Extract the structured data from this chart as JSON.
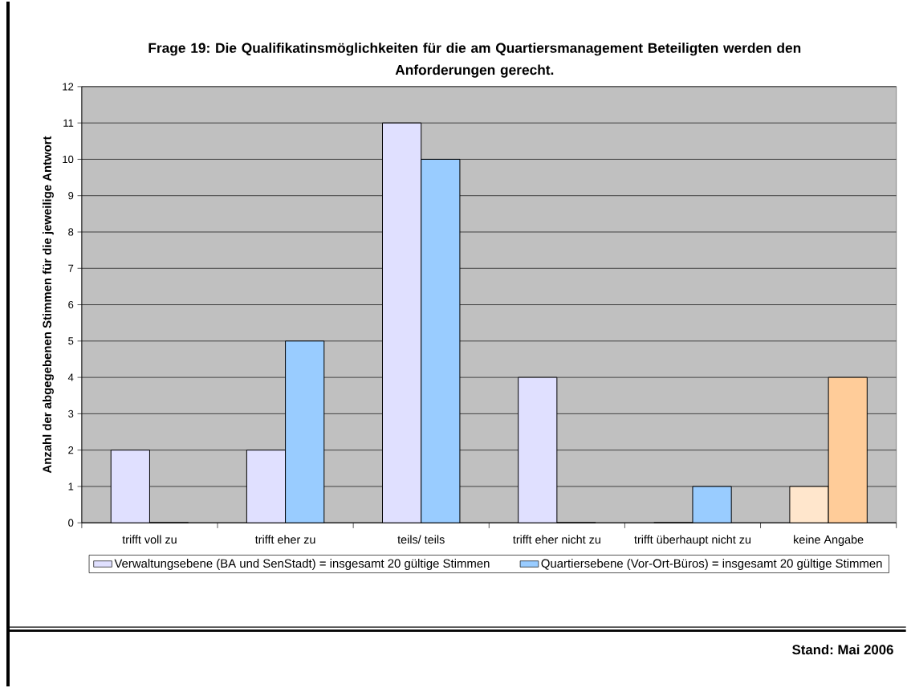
{
  "chart_data": {
    "type": "bar",
    "title": "Frage 19: Die Qualifikatinsmöglichkeiten für die am Quartiersmanagement Beteiligten werden den Anforderungen gerecht.",
    "ylabel": "Anzahl der abgegebenen Stimmen für die jeweilige Antwort",
    "categories": [
      "trifft voll zu",
      "trifft eher zu",
      "teils/ teils",
      "trifft eher nicht zu",
      "trifft überhaupt nicht zu",
      "keine Angabe"
    ],
    "series": [
      {
        "name": "Verwaltungsebene (BA und SenStadt) = insgesamt 20 gültige Stimmen",
        "color": "#e0e0ff",
        "colors": [
          "#e0e0ff",
          "#e0e0ff",
          "#e0e0ff",
          "#e0e0ff",
          "#e0e0ff",
          "#ffe6cc"
        ],
        "values": [
          2,
          2,
          11,
          4,
          0,
          1
        ]
      },
      {
        "name": "Quartiersebene (Vor-Ort-Büros) = insgesamt 20 gültige Stimmen",
        "color": "#99ccff",
        "colors": [
          "#99ccff",
          "#99ccff",
          "#99ccff",
          "#99ccff",
          "#99ccff",
          "#ffcc99"
        ],
        "values": [
          0,
          5,
          10,
          0,
          1,
          4
        ]
      }
    ],
    "ylim": [
      0,
      12
    ],
    "yticks": [
      0,
      1,
      2,
      3,
      4,
      5,
      6,
      7,
      8,
      9,
      10,
      11,
      12
    ],
    "grid": "y",
    "legend": "bottom",
    "annotations": [
      "Stand: Mai 2006"
    ]
  }
}
